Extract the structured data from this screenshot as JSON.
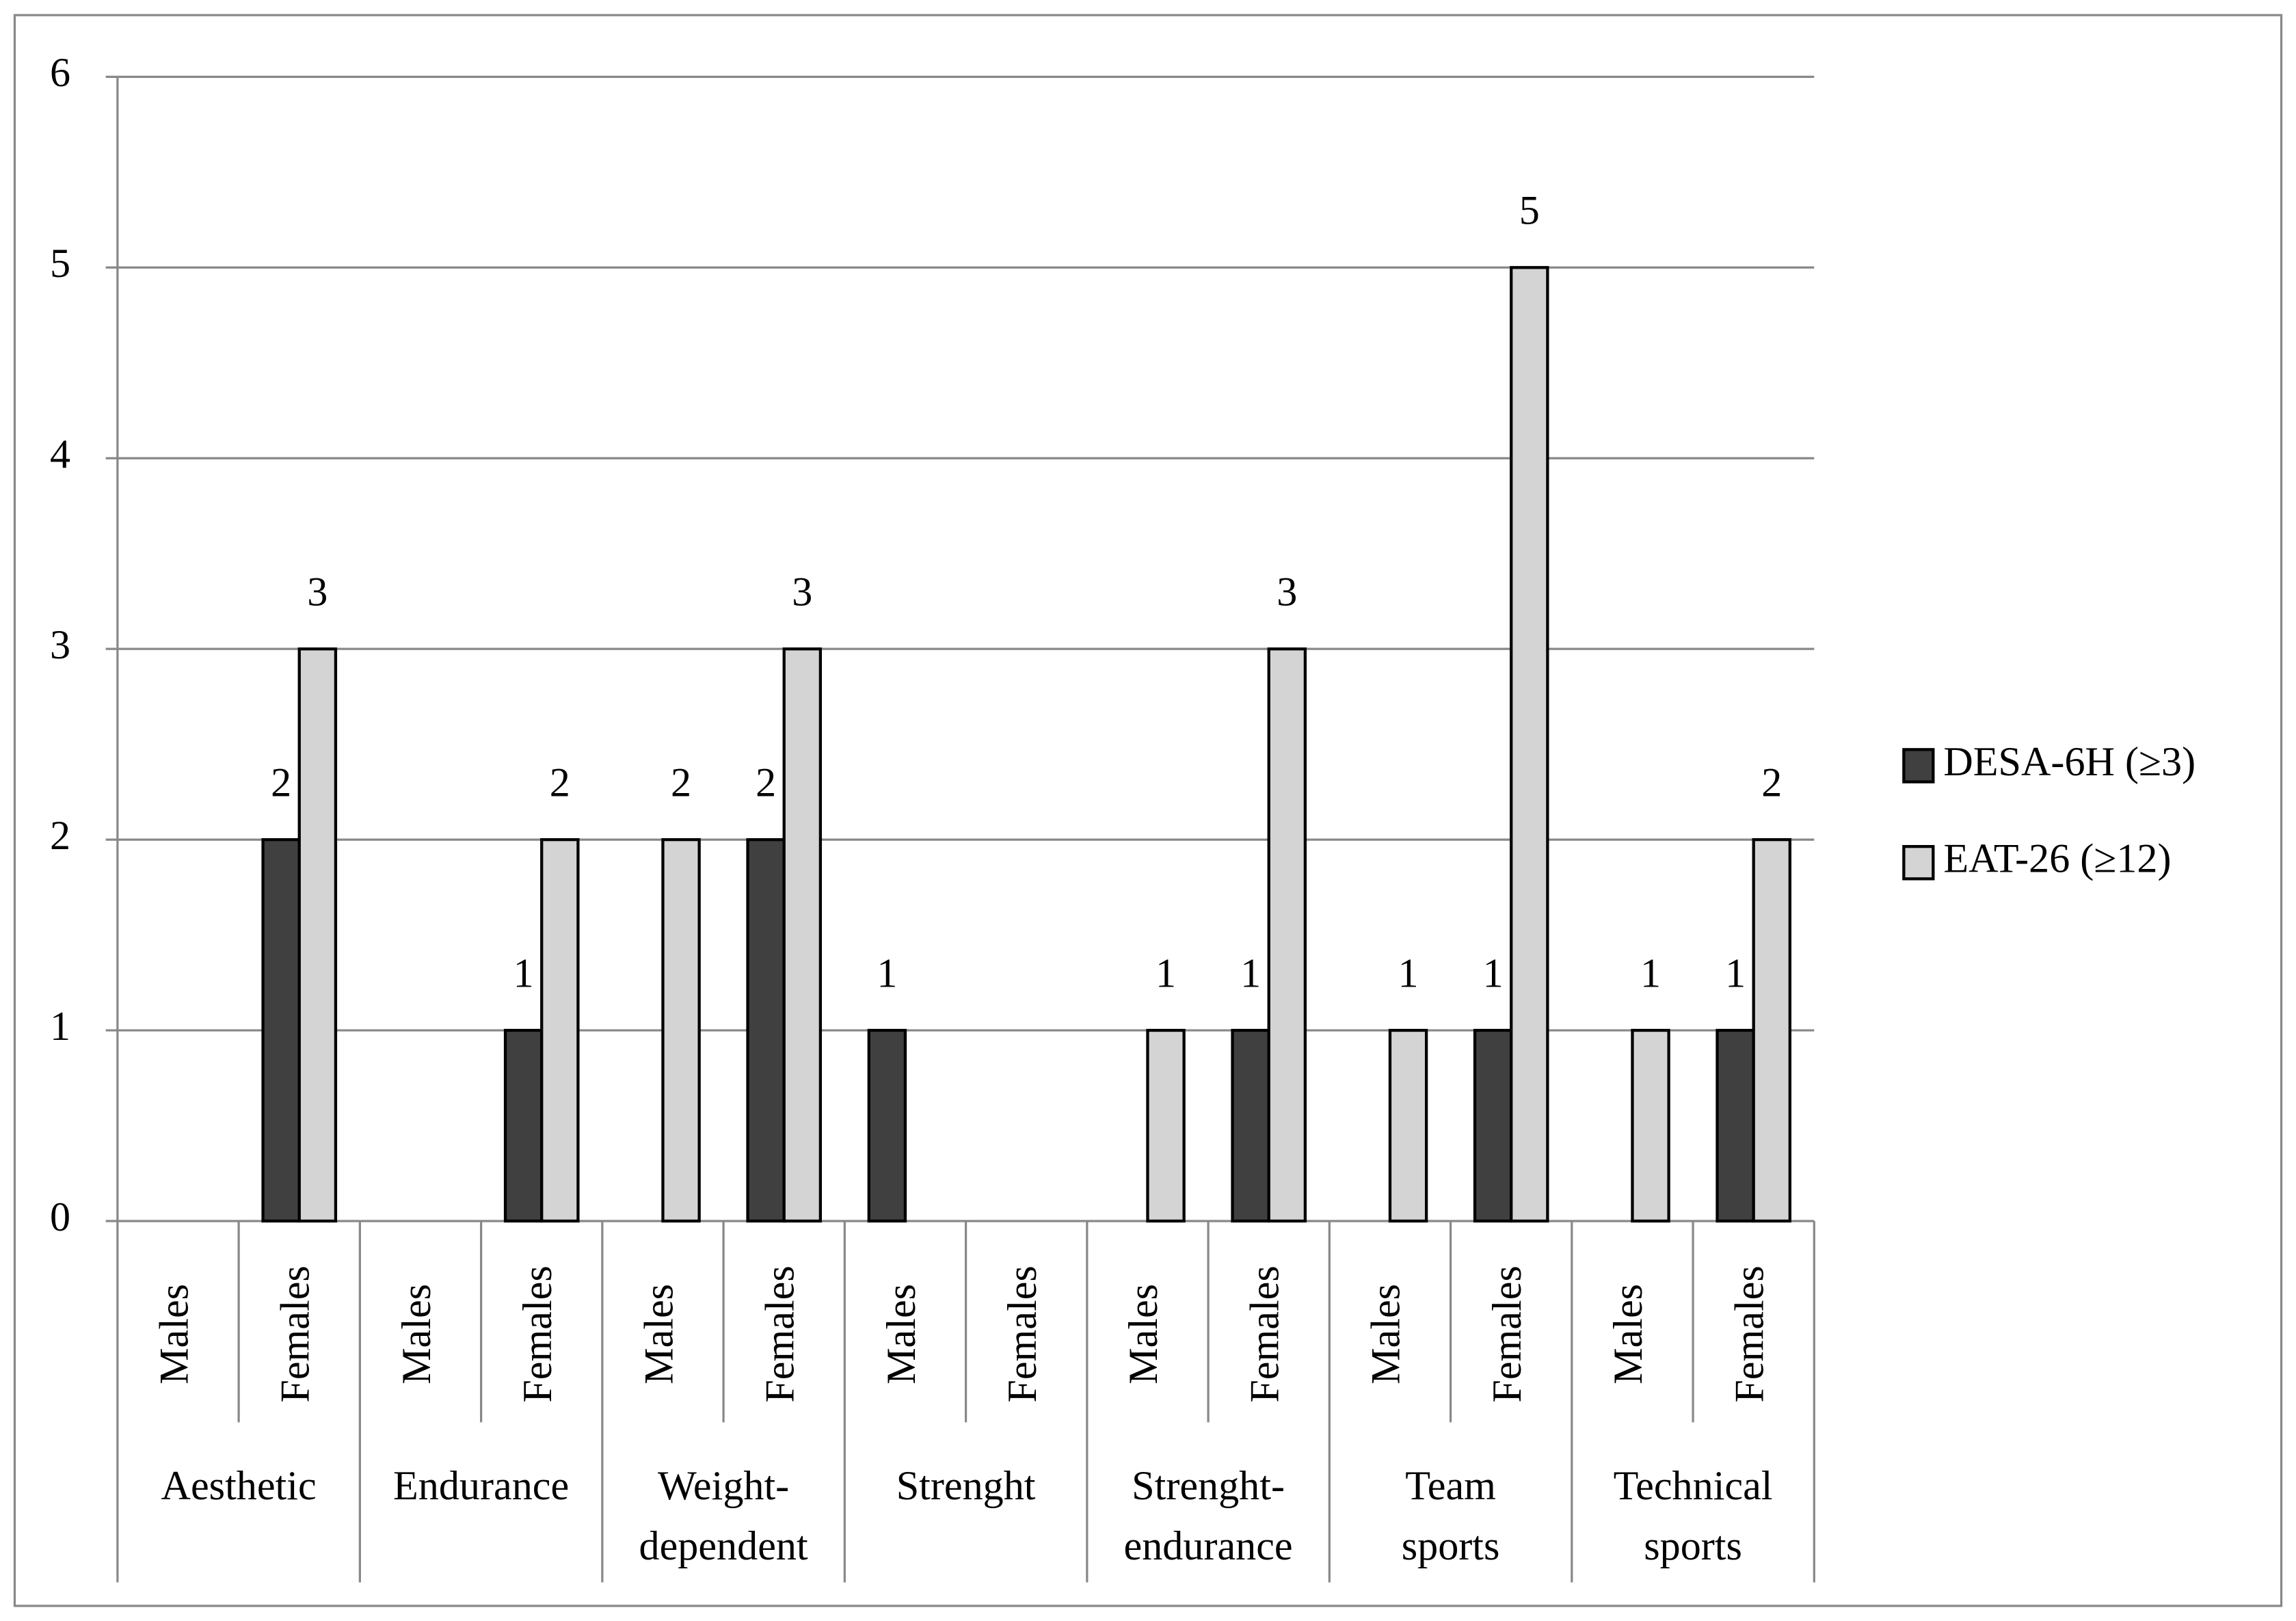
{
  "chart_data": {
    "type": "bar",
    "categories": [
      "Males",
      "Females",
      "Males",
      "Females",
      "Males",
      "Females",
      "Males",
      "Females",
      "Males",
      "Females",
      "Males",
      "Females",
      "Males",
      "Females"
    ],
    "category_groups": [
      [
        "Aesthetic"
      ],
      [
        "Endurance"
      ],
      [
        "Weight-",
        "dependent"
      ],
      [
        "Strenght"
      ],
      [
        "Strenght-",
        "endurance"
      ],
      [
        "Team",
        "sports"
      ],
      [
        "Technical",
        "sports"
      ]
    ],
    "series": [
      {
        "name": "DESA-6H (≥3)",
        "color": "#404040",
        "values": [
          null,
          2,
          null,
          1,
          null,
          2,
          1,
          null,
          null,
          1,
          null,
          1,
          null,
          1
        ]
      },
      {
        "name": "EAT-26 (≥12)",
        "color": "#d4d4d4",
        "values": [
          null,
          3,
          null,
          2,
          2,
          3,
          null,
          null,
          1,
          3,
          1,
          5,
          1,
          2
        ]
      }
    ],
    "ylim": [
      0,
      6
    ],
    "yticks": [
      0,
      1,
      2,
      3,
      4,
      5,
      6
    ],
    "grid": true,
    "legend": "right"
  }
}
